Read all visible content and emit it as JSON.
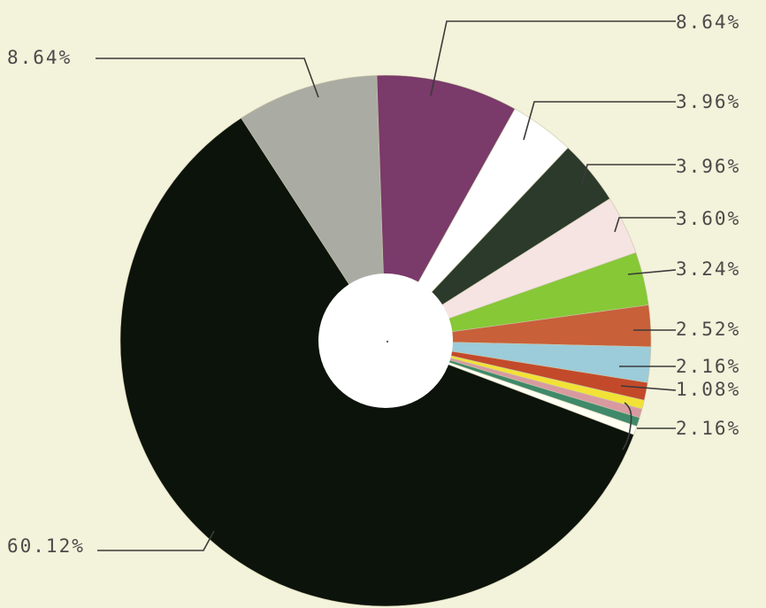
{
  "chart_data": {
    "type": "pie",
    "donut": true,
    "start_angle_deg": -33,
    "slices": [
      {
        "label": "8.64%",
        "value": 8.64,
        "color": "#aaaca3",
        "label_side": "left"
      },
      {
        "label": "8.64%",
        "value": 8.64,
        "color": "#7a3a6a",
        "label_side": "right"
      },
      {
        "label": "3.96%",
        "value": 3.96,
        "color": "#ffffff",
        "label_side": "right"
      },
      {
        "label": "3.96%",
        "value": 3.96,
        "color": "#2b3a2a",
        "label_side": "right"
      },
      {
        "label": "3.60%",
        "value": 3.6,
        "color": "#f5e4e2",
        "label_side": "right"
      },
      {
        "label": "3.24%",
        "value": 3.24,
        "color": "#86c836",
        "label_side": "right"
      },
      {
        "label": "2.52%",
        "value": 2.52,
        "color": "#c8603a",
        "label_side": "right"
      },
      {
        "label": "2.16%",
        "value": 2.16,
        "color": "#9ccbd9",
        "label_side": "right"
      },
      {
        "label": "1.08%",
        "value": 1.08,
        "color": "#c24a2a",
        "label_side": "right"
      },
      {
        "label": "2.16%",
        "value": 0.54,
        "color": "#f2e236",
        "label_side": "right",
        "group": "small"
      },
      {
        "label": "",
        "value": 0.54,
        "color": "#d89aa0",
        "group": "small"
      },
      {
        "label": "",
        "value": 0.54,
        "color": "#3f8a6a",
        "group": "small"
      },
      {
        "label": "",
        "value": 0.54,
        "color": "#fffff4",
        "group": "small"
      },
      {
        "label": "60.12%",
        "value": 60.12,
        "color": "#0c130b",
        "label_side": "left"
      }
    ]
  }
}
